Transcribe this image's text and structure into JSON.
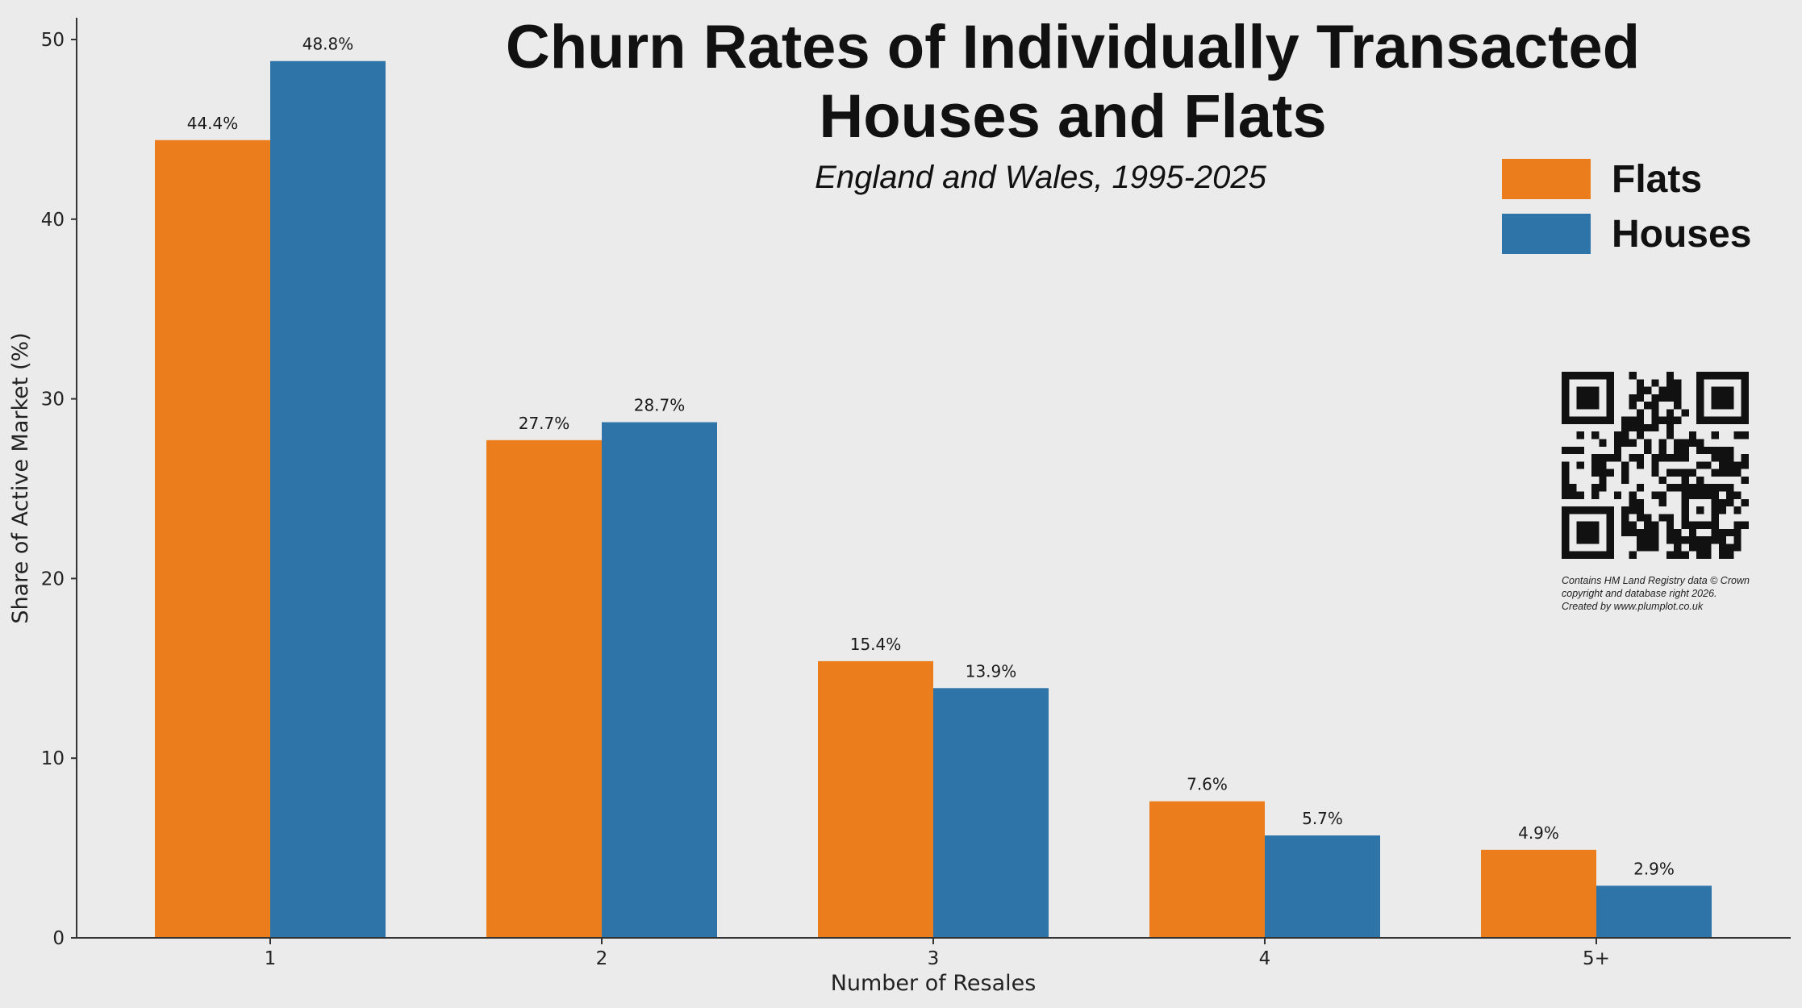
{
  "title_lines": [
    "Churn Rates of Individually Transacted",
    "Houses and Flats"
  ],
  "subtitle": "England and Wales, 1995-2025",
  "legend": [
    {
      "label": "Flats",
      "color": "#ec7d1c"
    },
    {
      "label": "Houses",
      "color": "#2e74a8"
    }
  ],
  "credit_lines": [
    "Contains HM Land Registry data © Crown",
    "copyright and database right 2026.",
    "Created by www.plumplot.co.uk"
  ],
  "qr_icon": "qr-code",
  "chart_data": {
    "type": "bar",
    "title": "Churn Rates of Individually Transacted Houses and Flats",
    "subtitle": "England and Wales, 1995-2025",
    "xlabel": "Number of Resales",
    "ylabel": "Share of Active Market (%)",
    "categories": [
      "1",
      "2",
      "3",
      "4",
      "5+"
    ],
    "series": [
      {
        "name": "Flats",
        "color": "#ec7d1c",
        "values": [
          44.4,
          27.7,
          15.4,
          7.6,
          4.9
        ],
        "labels": [
          "44.4%",
          "27.7%",
          "15.4%",
          "7.6%",
          "4.9%"
        ]
      },
      {
        "name": "Houses",
        "color": "#2e74a8",
        "values": [
          48.8,
          28.7,
          13.9,
          5.7,
          2.9
        ],
        "labels": [
          "48.8%",
          "28.7%",
          "13.9%",
          "5.7%",
          "2.9%"
        ]
      }
    ],
    "yticks": [
      0,
      10,
      20,
      30,
      40,
      50
    ],
    "ylim": [
      0,
      51.5
    ],
    "grid": false,
    "legend_position": "upper right"
  }
}
